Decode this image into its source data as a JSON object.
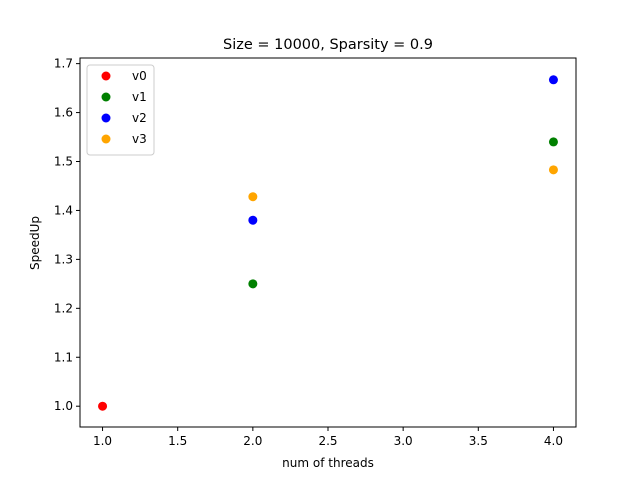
{
  "chart_data": {
    "type": "scatter",
    "title": "Size = 10000, Sparsity = 0.9",
    "xlabel": "num of threads",
    "ylabel": "SpeedUp",
    "xlim": [
      0.85,
      4.15
    ],
    "ylim": [
      0.9575,
      1.7115
    ],
    "xticks": [
      1.0,
      1.5,
      2.0,
      2.5,
      3.0,
      3.5,
      4.0
    ],
    "xtick_labels": [
      "1.0",
      "1.5",
      "2.0",
      "2.5",
      "3.0",
      "3.5",
      "4.0"
    ],
    "yticks": [
      1.0,
      1.1,
      1.2,
      1.3,
      1.4,
      1.5,
      1.6,
      1.7
    ],
    "ytick_labels": [
      "1.0",
      "1.1",
      "1.2",
      "1.3",
      "1.4",
      "1.5",
      "1.6",
      "1.7"
    ],
    "grid": false,
    "legend_position": "top-left",
    "series": [
      {
        "name": "v0",
        "color": "#ff0000",
        "points": [
          [
            1,
            1.0
          ]
        ]
      },
      {
        "name": "v1",
        "color": "#008000",
        "points": [
          [
            2,
            1.25
          ],
          [
            4,
            1.54
          ]
        ]
      },
      {
        "name": "v2",
        "color": "#0000ff",
        "points": [
          [
            2,
            1.38
          ],
          [
            4,
            1.667
          ]
        ]
      },
      {
        "name": "v3",
        "color": "#ffa500",
        "points": [
          [
            2,
            1.428
          ],
          [
            4,
            1.483
          ]
        ]
      }
    ]
  }
}
